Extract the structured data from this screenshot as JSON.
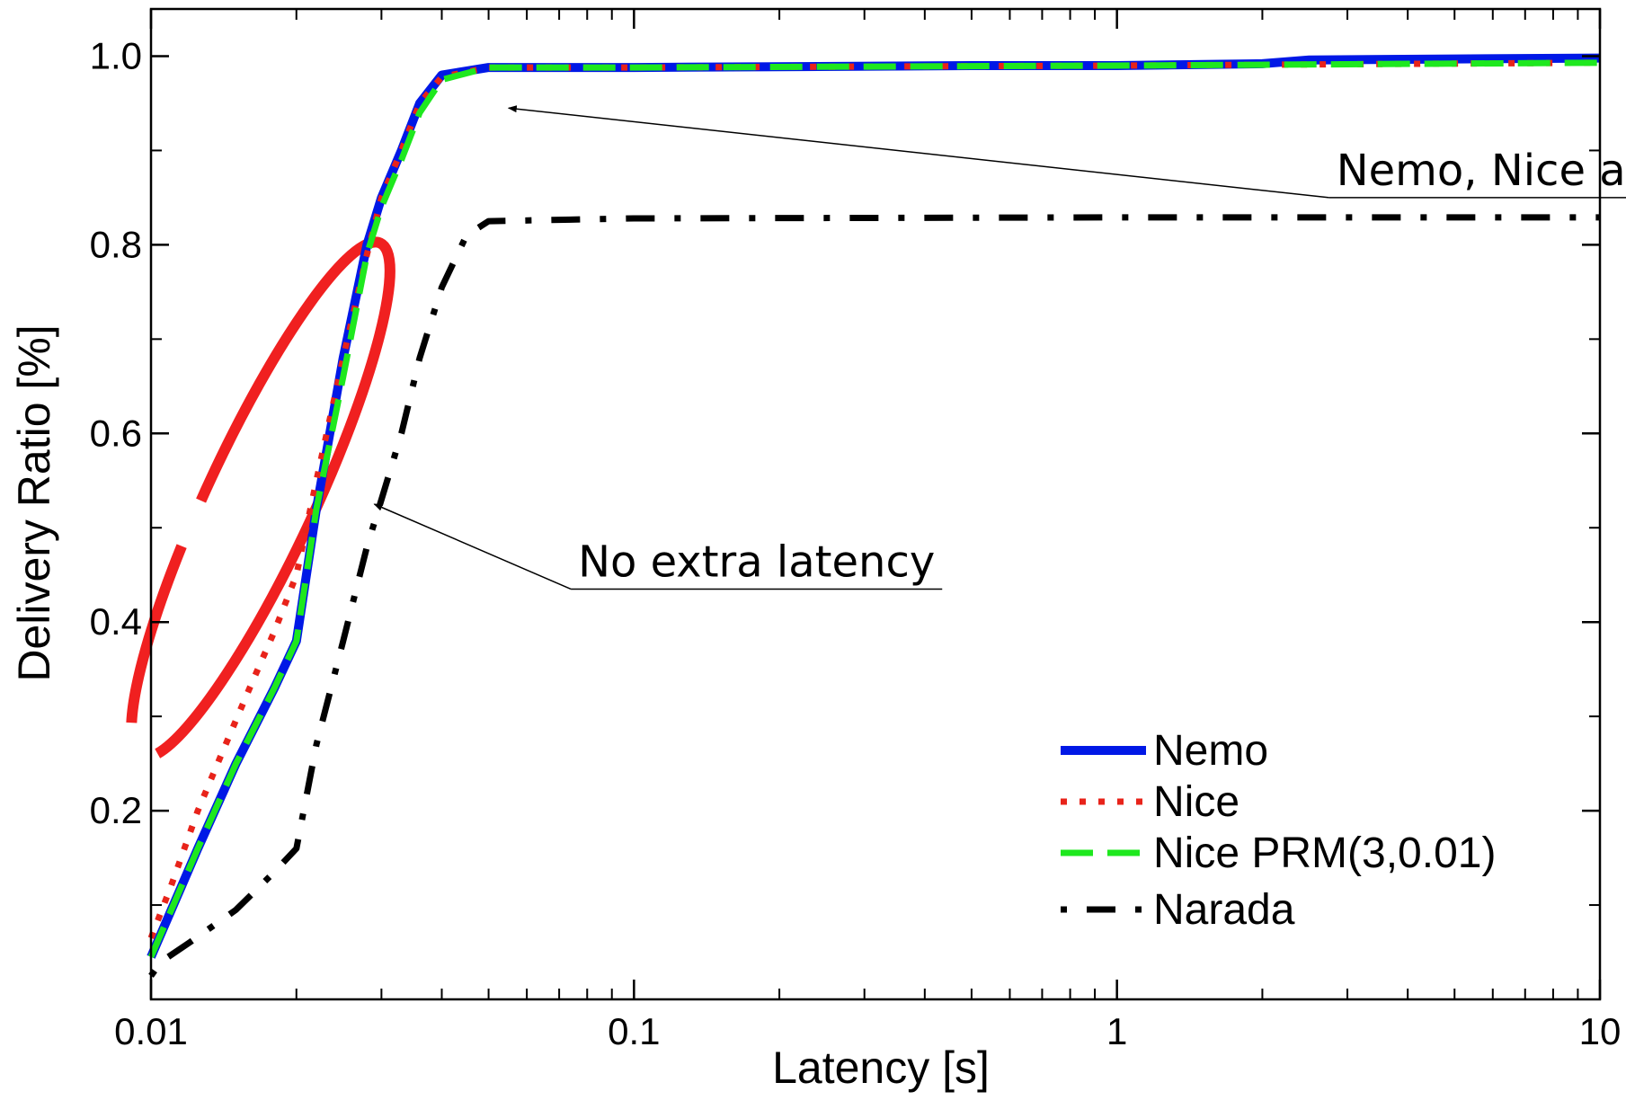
{
  "chart_data": {
    "type": "line",
    "title": "",
    "xlabel": "Latency [s]",
    "ylabel": "Delivery Ratio [%]",
    "xscale": "log",
    "xlim": [
      0.01,
      10
    ],
    "ylim": [
      0.0,
      1.05
    ],
    "grid": false,
    "legend_position": "bottom-right",
    "x_ticks": [
      {
        "value": 0.01,
        "label": "0.01"
      },
      {
        "value": 0.1,
        "label": "0.1"
      },
      {
        "value": 1,
        "label": "1"
      },
      {
        "value": 10,
        "label": "10"
      }
    ],
    "y_ticks": [
      {
        "value": 0.2,
        "label": "0.2"
      },
      {
        "value": 0.4,
        "label": "0.4"
      },
      {
        "value": 0.6,
        "label": "0.6"
      },
      {
        "value": 0.8,
        "label": "0.8"
      },
      {
        "value": 1.0,
        "label": "1.0"
      }
    ],
    "series": [
      {
        "name": "Nemo",
        "color": "#0018e6",
        "style": "solid",
        "points": [
          [
            0.01,
            0.045
          ],
          [
            0.0125,
            0.16
          ],
          [
            0.015,
            0.25
          ],
          [
            0.018,
            0.33
          ],
          [
            0.02,
            0.38
          ],
          [
            0.022,
            0.52
          ],
          [
            0.025,
            0.68
          ],
          [
            0.028,
            0.8
          ],
          [
            0.03,
            0.85
          ],
          [
            0.033,
            0.9
          ],
          [
            0.036,
            0.95
          ],
          [
            0.04,
            0.98
          ],
          [
            0.05,
            0.988
          ],
          [
            0.1,
            0.988
          ],
          [
            0.5,
            0.99
          ],
          [
            1,
            0.99
          ],
          [
            2,
            0.992
          ],
          [
            2.5,
            0.996
          ],
          [
            5,
            0.997
          ],
          [
            10,
            0.998
          ]
        ]
      },
      {
        "name": "Nice",
        "color": "#e8231a",
        "style": "dotted",
        "points": [
          [
            0.01,
            0.065
          ],
          [
            0.011,
            0.12
          ],
          [
            0.0125,
            0.2
          ],
          [
            0.014,
            0.26
          ],
          [
            0.016,
            0.33
          ],
          [
            0.018,
            0.39
          ],
          [
            0.02,
            0.45
          ],
          [
            0.022,
            0.55
          ],
          [
            0.025,
            0.68
          ],
          [
            0.028,
            0.79
          ],
          [
            0.03,
            0.85
          ],
          [
            0.033,
            0.9
          ],
          [
            0.036,
            0.95
          ],
          [
            0.04,
            0.978
          ],
          [
            0.05,
            0.988
          ],
          [
            0.1,
            0.988
          ],
          [
            1,
            0.99
          ],
          [
            10,
            0.993
          ]
        ]
      },
      {
        "name": "Nice PRM(3,0.01)",
        "color": "#1ee81e",
        "style": "dashed",
        "points": [
          [
            0.01,
            0.045
          ],
          [
            0.0125,
            0.16
          ],
          [
            0.015,
            0.25
          ],
          [
            0.018,
            0.33
          ],
          [
            0.02,
            0.38
          ],
          [
            0.022,
            0.52
          ],
          [
            0.025,
            0.66
          ],
          [
            0.028,
            0.79
          ],
          [
            0.03,
            0.84
          ],
          [
            0.033,
            0.89
          ],
          [
            0.036,
            0.94
          ],
          [
            0.04,
            0.975
          ],
          [
            0.05,
            0.988
          ],
          [
            0.1,
            0.988
          ],
          [
            1,
            0.99
          ],
          [
            10,
            0.993
          ]
        ]
      },
      {
        "name": "Narada",
        "color": "#000000",
        "style": "dashdot",
        "points": [
          [
            0.01,
            0.025
          ],
          [
            0.0105,
            0.04
          ],
          [
            0.012,
            0.06
          ],
          [
            0.015,
            0.095
          ],
          [
            0.018,
            0.135
          ],
          [
            0.02,
            0.16
          ],
          [
            0.022,
            0.27
          ],
          [
            0.025,
            0.38
          ],
          [
            0.028,
            0.48
          ],
          [
            0.03,
            0.53
          ],
          [
            0.033,
            0.6
          ],
          [
            0.036,
            0.68
          ],
          [
            0.04,
            0.755
          ],
          [
            0.045,
            0.81
          ],
          [
            0.05,
            0.825
          ],
          [
            0.1,
            0.828
          ],
          [
            1,
            0.829
          ],
          [
            10,
            0.829
          ]
        ]
      }
    ],
    "annotations": [
      {
        "text": "Nemo, Nice and Nice PRM overlap",
        "anchor": [
          2.75,
          0.85
        ],
        "target": [
          0.055,
          0.945
        ]
      },
      {
        "text": "No extra latency",
        "anchor": [
          0.074,
          0.435
        ],
        "target": [
          0.029,
          0.525
        ]
      }
    ]
  }
}
